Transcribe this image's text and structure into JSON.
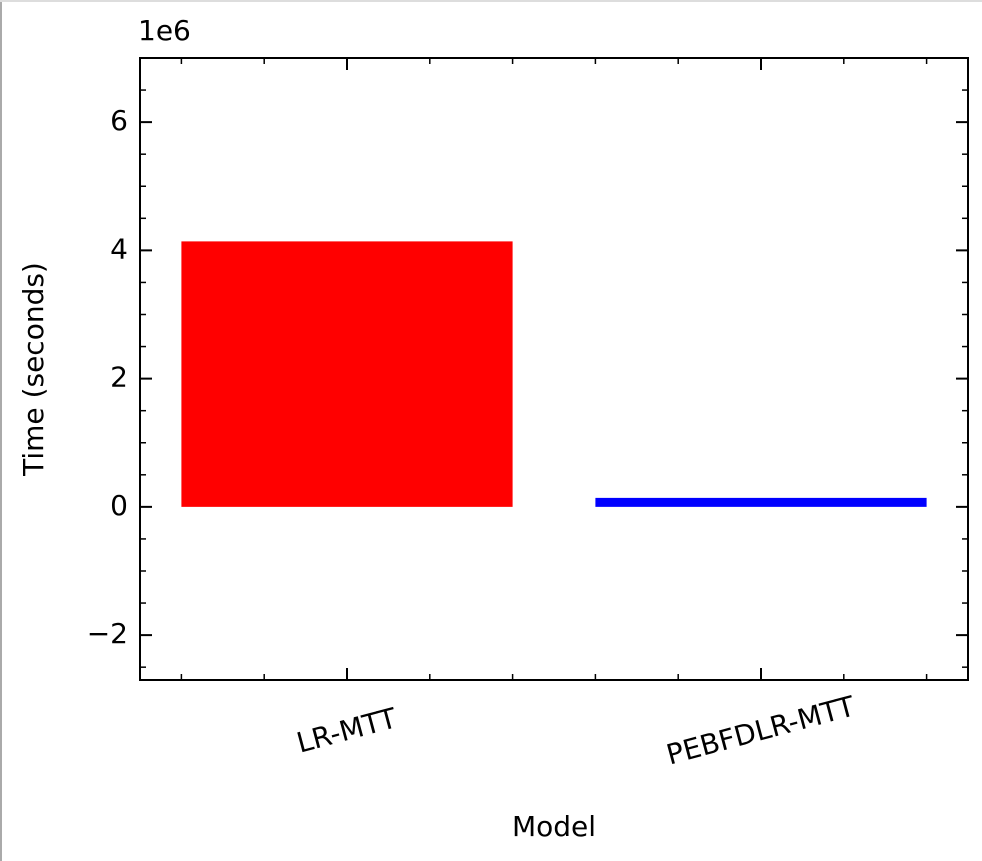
{
  "chart_data": {
    "type": "bar",
    "categories": [
      "LR-MTT",
      "PEBFDLR-MTT"
    ],
    "series": [
      {
        "name": "LR-MTT",
        "color": "#ff0000",
        "values": [
          4140000,
          null
        ]
      },
      {
        "name": "PEBFDLR-MTT",
        "color": "#0000ff",
        "values": [
          null,
          140000
        ]
      }
    ],
    "xlabel": "Model",
    "ylabel": "Time (seconds)",
    "y_offset_label": "1e6",
    "ylim": [
      -2700000,
      7000000
    ],
    "yticks": [
      {
        "value": -2000000,
        "label": "−2"
      },
      {
        "value": 0,
        "label": "0"
      },
      {
        "value": 2000000,
        "label": "2"
      },
      {
        "value": 4000000,
        "label": "4"
      },
      {
        "value": 6000000,
        "label": "6"
      }
    ],
    "yminorticks": [
      -2500000,
      -1500000,
      -1000000,
      -500000,
      500000,
      1000000,
      1500000,
      2500000,
      3000000,
      3500000,
      4500000,
      5000000,
      5500000,
      6500000
    ],
    "grid": false
  }
}
